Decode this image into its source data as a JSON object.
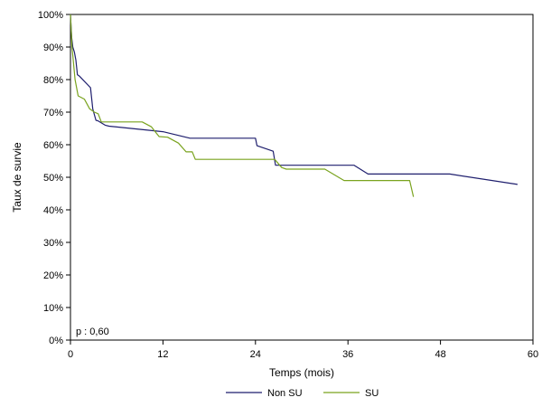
{
  "chart_data": {
    "type": "line",
    "title": "",
    "xlabel": "Temps (mois)",
    "ylabel": "Taux de survie",
    "xlim": [
      0,
      60
    ],
    "ylim": [
      0,
      100
    ],
    "x_ticks": [
      "0",
      "12",
      "24",
      "36",
      "48",
      "60"
    ],
    "x_tick_values": [
      0,
      12,
      24,
      36,
      48,
      60
    ],
    "y_ticks": [
      "0%",
      "10%",
      "20%",
      "30%",
      "40%",
      "50%",
      "60%",
      "70%",
      "80%",
      "90%",
      "100%"
    ],
    "y_tick_values": [
      0,
      10,
      20,
      30,
      40,
      50,
      60,
      70,
      80,
      90,
      100
    ],
    "grid": false,
    "legend_position": "bottom",
    "annotation": "p : 0,60",
    "series": [
      {
        "name": "Non SU",
        "color": "#1f1f6e",
        "points": [
          [
            0,
            100
          ],
          [
            0.15,
            93
          ],
          [
            0.3,
            90
          ],
          [
            0.5,
            88.5
          ],
          [
            0.7,
            86
          ],
          [
            0.9,
            81.5
          ],
          [
            1.2,
            81
          ],
          [
            2.6,
            77.5
          ],
          [
            2.9,
            71
          ],
          [
            3.3,
            67.5
          ],
          [
            3.6,
            67.3
          ],
          [
            4.5,
            66
          ],
          [
            5,
            65.7
          ],
          [
            12,
            64
          ],
          [
            15.5,
            62
          ],
          [
            24,
            62
          ],
          [
            24.2,
            59.7
          ],
          [
            26.3,
            58
          ],
          [
            26.6,
            53.7
          ],
          [
            36.8,
            53.7
          ],
          [
            38.6,
            51
          ],
          [
            49.2,
            51
          ],
          [
            58,
            47.8
          ]
        ]
      },
      {
        "name": "SU",
        "color": "#7aa31f",
        "points": [
          [
            0,
            100
          ],
          [
            0.2,
            90
          ],
          [
            0.4,
            85
          ],
          [
            0.6,
            80
          ],
          [
            1,
            75
          ],
          [
            1.8,
            74
          ],
          [
            2.5,
            71
          ],
          [
            3.1,
            70
          ],
          [
            3.6,
            69.5
          ],
          [
            4,
            67
          ],
          [
            9.3,
            67
          ],
          [
            10.5,
            65.5
          ],
          [
            11.5,
            62.5
          ],
          [
            12.6,
            62.3
          ],
          [
            14,
            60.5
          ],
          [
            15,
            57.8
          ],
          [
            15.8,
            57.8
          ],
          [
            16.2,
            55.5
          ],
          [
            26.5,
            55.5
          ],
          [
            27.4,
            53
          ],
          [
            28,
            52.5
          ],
          [
            33,
            52.5
          ],
          [
            35.5,
            49
          ],
          [
            44,
            49
          ],
          [
            44.5,
            44
          ]
        ]
      }
    ]
  }
}
